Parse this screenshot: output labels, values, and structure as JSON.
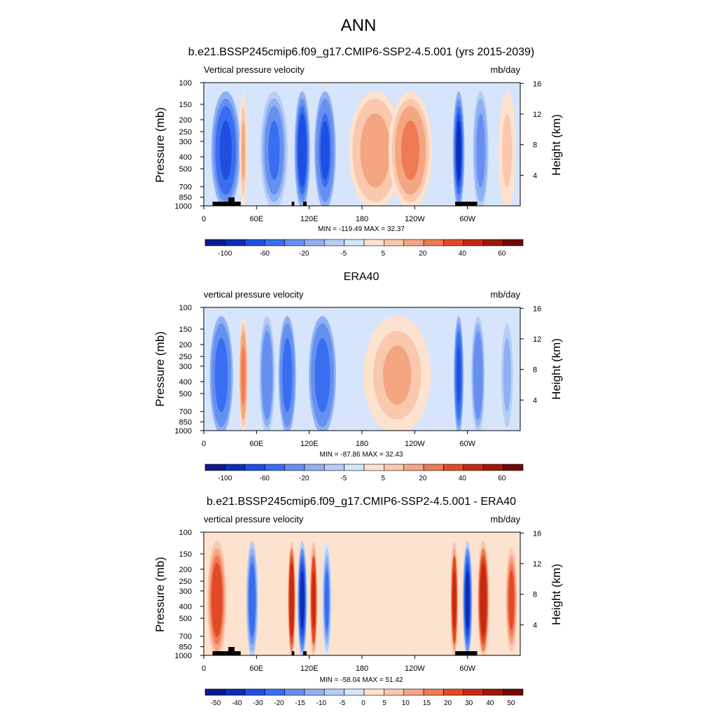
{
  "figure": {
    "main_title": "ANN",
    "colors": {
      "div_scale": [
        "#0d1a8c",
        "#0a2fb5",
        "#1f4fe0",
        "#3a6ef0",
        "#6690f0",
        "#8fb0f2",
        "#b6cdf6",
        "#d6e5fb",
        "#fde2cf",
        "#f9c8ad",
        "#f4a581",
        "#ef7a53",
        "#e04a26",
        "#c42a12",
        "#9a1a0a",
        "#6e0a05"
      ],
      "topo": "#000000"
    }
  },
  "chart_data": [
    {
      "type": "heatmap",
      "panel_id": "model",
      "title": "b.e21.BSSP245cmip6.f09_g17.CMIP6-SSP2-4.5.001 (yrs 2015-2039)",
      "variable_label": "Vertical pressure velocity",
      "units_label": "mb/day",
      "xlabel": "",
      "ylabel": "Pressure (mb)",
      "ylabel_right": "Height (km)",
      "x_ticks": [
        "0",
        "60E",
        "120E",
        "180",
        "120W",
        "60W"
      ],
      "y_ticks": [
        "100",
        "150",
        "200",
        "250",
        "300",
        "400",
        "500",
        "700",
        "850",
        "1000"
      ],
      "y_ticks_right": [
        "16",
        "12",
        "8",
        "4"
      ],
      "xlim": [
        0,
        360
      ],
      "ylim": [
        1000,
        100
      ],
      "stats": "MIN = -119.49  MAX =  32.37",
      "colorbar_labels": [
        "-100",
        "-60",
        "-20",
        "-5",
        "5",
        "20",
        "40",
        "60"
      ],
      "features": [
        {
          "lon": 25,
          "width": 30,
          "value": -70
        },
        {
          "lon": 45,
          "width": 8,
          "value": 12
        },
        {
          "lon": 80,
          "width": 28,
          "value": -45
        },
        {
          "lon": 112,
          "width": 16,
          "value": -75
        },
        {
          "lon": 138,
          "width": 22,
          "value": -60
        },
        {
          "lon": 195,
          "width": 55,
          "value": 14
        },
        {
          "lon": 235,
          "width": 45,
          "value": 22
        },
        {
          "lon": 290,
          "width": 12,
          "value": -85
        },
        {
          "lon": 315,
          "width": 16,
          "value": -30
        },
        {
          "lon": 345,
          "width": 18,
          "value": 8
        }
      ],
      "topography": true
    },
    {
      "type": "heatmap",
      "panel_id": "obs",
      "title": "ERA40",
      "variable_label": "vertical pressure velocity",
      "units_label": "mb/day",
      "xlabel": "",
      "ylabel": "Pressure (mb)",
      "ylabel_right": "Height (km)",
      "x_ticks": [
        "0",
        "60E",
        "120E",
        "180",
        "120W",
        "60W"
      ],
      "y_ticks": [
        "100",
        "150",
        "200",
        "250",
        "300",
        "400",
        "500",
        "700",
        "850",
        "1000"
      ],
      "y_ticks_right": [
        "16",
        "12",
        "8",
        "4"
      ],
      "xlim": [
        0,
        360
      ],
      "ylim": [
        1000,
        100
      ],
      "stats": "MIN = -87.86  MAX =  32.43",
      "colorbar_labels": [
        "-100",
        "-60",
        "-20",
        "-5",
        "5",
        "20",
        "40",
        "60"
      ],
      "features": [
        {
          "lon": 20,
          "width": 24,
          "value": -55
        },
        {
          "lon": 45,
          "width": 10,
          "value": 25
        },
        {
          "lon": 72,
          "width": 16,
          "value": -35
        },
        {
          "lon": 95,
          "width": 18,
          "value": -50
        },
        {
          "lon": 135,
          "width": 28,
          "value": -55
        },
        {
          "lon": 220,
          "width": 70,
          "value": 12
        },
        {
          "lon": 290,
          "width": 10,
          "value": -70
        },
        {
          "lon": 312,
          "width": 14,
          "value": -35
        },
        {
          "lon": 345,
          "width": 14,
          "value": -15
        }
      ],
      "topography": false
    },
    {
      "type": "heatmap",
      "panel_id": "diff",
      "title": "b.e21.BSSP245cmip6.f09_g17.CMIP6-SSP2-4.5.001 - ERA40",
      "variable_label": "vertical pressure velocity",
      "units_label": "mb/day",
      "xlabel": "",
      "ylabel": "Pressure (mb)",
      "ylabel_right": "Height (km)",
      "x_ticks": [
        "0",
        "60E",
        "120E",
        "180",
        "120W",
        "60W"
      ],
      "y_ticks": [
        "100",
        "150",
        "200",
        "250",
        "300",
        "400",
        "500",
        "700",
        "850",
        "1000"
      ],
      "y_ticks_right": [
        "16",
        "12",
        "8",
        "4"
      ],
      "xlim": [
        0,
        360
      ],
      "ylim": [
        1000,
        100
      ],
      "stats": "MIN = -58.04  MAX =  51.42",
      "colorbar_labels": [
        "-50",
        "-40",
        "-30",
        "-20",
        "-15",
        "-10",
        "-5",
        "0",
        "5",
        "10",
        "15",
        "20",
        "30",
        "40",
        "50"
      ],
      "features": [
        {
          "lon": 15,
          "width": 20,
          "value": 30
        },
        {
          "lon": 55,
          "width": 12,
          "value": -25
        },
        {
          "lon": 100,
          "width": 8,
          "value": 40
        },
        {
          "lon": 112,
          "width": 10,
          "value": -45
        },
        {
          "lon": 125,
          "width": 8,
          "value": 35
        },
        {
          "lon": 140,
          "width": 10,
          "value": -20
        },
        {
          "lon": 285,
          "width": 8,
          "value": 35
        },
        {
          "lon": 300,
          "width": 10,
          "value": -45
        },
        {
          "lon": 318,
          "width": 12,
          "value": 40
        },
        {
          "lon": 350,
          "width": 14,
          "value": 25
        }
      ],
      "topography": true
    }
  ]
}
